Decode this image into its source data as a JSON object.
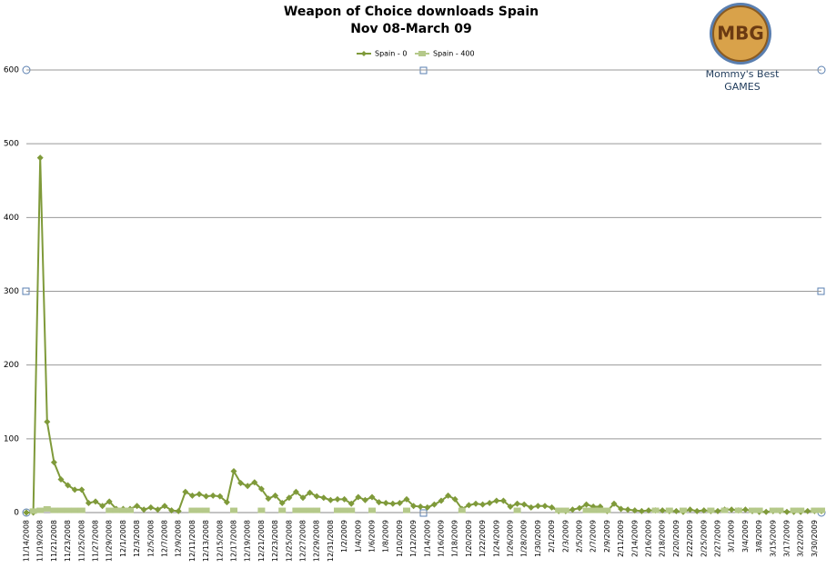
{
  "chart_data": {
    "type": "line",
    "title": "Weapon of Choice downloads Spain",
    "subtitle": "Nov 08-March 09",
    "logo": {
      "text": "MBG",
      "line1": "Mommy's Best",
      "line2": "GAMES"
    },
    "grid": true,
    "legend": "top",
    "ylim": [
      0,
      600
    ],
    "yticks": [
      0,
      100,
      200,
      300,
      400,
      500,
      600
    ],
    "categories": [
      "11/14/2008",
      null,
      "11/19/2008",
      null,
      "11/21/2008",
      null,
      "11/23/2008",
      null,
      "11/25/2008",
      null,
      "11/27/2008",
      null,
      "11/29/2008",
      null,
      "12/1/2008",
      null,
      "12/3/2008",
      null,
      "12/5/2008",
      null,
      "12/7/2008",
      null,
      "12/9/2008",
      null,
      "12/11/2008",
      null,
      "12/13/2008",
      null,
      "12/15/2008",
      null,
      "12/17/2008",
      null,
      "12/19/2008",
      null,
      "12/21/2008",
      null,
      "12/23/2008",
      null,
      "12/25/2008",
      null,
      "12/27/2008",
      null,
      "12/29/2008",
      null,
      "12/31/2008",
      null,
      "1/2/2009",
      null,
      "1/4/2009",
      null,
      "1/6/2009",
      null,
      "1/8/2009",
      null,
      "1/10/2009",
      null,
      "1/12/2009",
      null,
      "1/14/2009",
      null,
      "1/16/2009",
      null,
      "1/18/2009",
      null,
      "1/20/2009",
      null,
      "1/22/2009",
      null,
      "1/24/2009",
      null,
      "1/26/2009",
      null,
      "1/28/2009",
      null,
      "1/30/2009",
      null,
      "2/1/2009",
      null,
      "2/3/2009",
      null,
      "2/5/2009",
      null,
      "2/7/2009",
      null,
      "2/9/2009",
      null,
      "2/11/2009",
      null,
      "2/14/2009",
      null,
      "2/16/2009",
      null,
      "2/18/2009",
      null,
      "2/20/2009",
      null,
      "2/22/2009",
      null,
      "2/25/2009",
      null,
      "2/27/2009",
      null,
      "3/1/2009",
      null,
      "3/4/2009",
      null,
      "3/8/2009",
      null,
      "3/15/2009",
      null,
      "3/17/2009",
      null,
      "3/22/2009",
      null,
      "3/30/2009",
      null
    ],
    "series": [
      {
        "name": "Spain - 0",
        "color": "#7f9a3a",
        "marker": "diamond",
        "show_line": true,
        "values": [
          0,
          0,
          481,
          123,
          68,
          45,
          37,
          31,
          31,
          13,
          15,
          9,
          15,
          5,
          5,
          5,
          9,
          4,
          7,
          4,
          9,
          3,
          2,
          28,
          23,
          25,
          22,
          23,
          22,
          14,
          56,
          40,
          36,
          41,
          32,
          19,
          23,
          13,
          20,
          28,
          20,
          27,
          22,
          20,
          17,
          18,
          18,
          12,
          21,
          17,
          21,
          14,
          13,
          12,
          13,
          18,
          9,
          8,
          7,
          11,
          16,
          23,
          18,
          5,
          10,
          12,
          11,
          13,
          16,
          16,
          8,
          12,
          11,
          7,
          9,
          9,
          7,
          2,
          2,
          4,
          6,
          11,
          8,
          8,
          2,
          12,
          5,
          4,
          3,
          2,
          3,
          3,
          3,
          2,
          2,
          1,
          4,
          2,
          3,
          2,
          2,
          4,
          4,
          3,
          4,
          2,
          1,
          1,
          2,
          2,
          1,
          1,
          1,
          2,
          2,
          2
        ]
      },
      {
        "name": "Spain - 400",
        "color": "#b5c98a",
        "marker": "square",
        "show_line": false,
        "values": [
          null,
          2,
          3,
          5,
          3,
          3,
          3,
          3,
          3,
          null,
          null,
          null,
          3,
          3,
          3,
          3,
          null,
          null,
          null,
          null,
          null,
          null,
          null,
          null,
          3,
          3,
          3,
          null,
          null,
          null,
          3,
          null,
          null,
          null,
          3,
          null,
          null,
          3,
          null,
          3,
          3,
          3,
          3,
          null,
          null,
          3,
          3,
          3,
          null,
          null,
          3,
          null,
          null,
          null,
          null,
          3,
          null,
          null,
          null,
          null,
          null,
          null,
          null,
          3,
          null,
          null,
          null,
          null,
          null,
          null,
          null,
          3,
          null,
          null,
          null,
          null,
          null,
          3,
          3,
          null,
          null,
          3,
          3,
          3,
          3,
          null,
          null,
          null,
          null,
          null,
          null,
          3,
          null,
          3,
          null,
          3,
          null,
          null,
          null,
          3,
          null,
          3,
          null,
          3,
          null,
          3,
          3,
          null,
          3,
          3,
          null,
          3,
          3,
          null,
          3,
          3
        ]
      }
    ]
  }
}
